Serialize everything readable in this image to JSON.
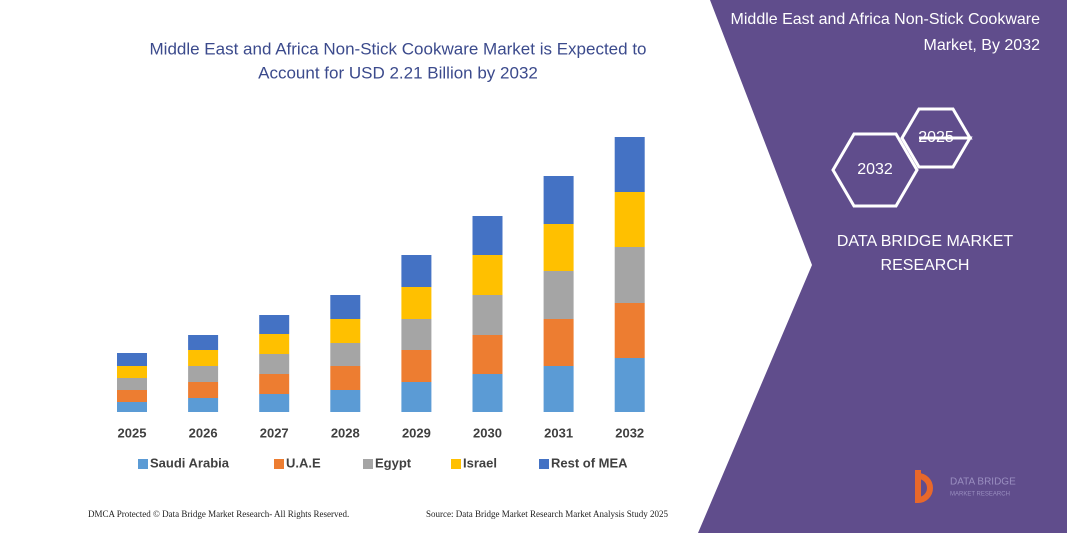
{
  "chart_data": {
    "type": "bar",
    "stacked": true,
    "title": "Middle East and Africa Non-Stick Cookware Market is Expected to Account for USD 2.21 Billion by 2032",
    "categories": [
      "2025",
      "2026",
      "2027",
      "2028",
      "2029",
      "2030",
      "2031",
      "2032"
    ],
    "series": [
      {
        "name": "Saudi Arabia",
        "color": "#5b9bd5",
        "values": [
          10,
          14,
          18,
          22,
          30,
          38,
          46,
          54
        ]
      },
      {
        "name": "U.A.E",
        "color": "#ed7d31",
        "values": [
          12,
          16,
          20,
          24,
          32,
          39,
          47,
          55
        ]
      },
      {
        "name": "Egypt",
        "color": "#a5a5a5",
        "values": [
          12,
          16,
          20,
          23,
          31,
          40,
          48,
          56
        ]
      },
      {
        "name": "Israel",
        "color": "#ffc000",
        "values": [
          12,
          16,
          20,
          24,
          32,
          40,
          47,
          55
        ]
      },
      {
        "name": "Rest of MEA",
        "color": "#4472c4",
        "values": [
          13,
          15,
          19,
          24,
          32,
          39,
          48,
          55
        ]
      }
    ]
  },
  "panel": {
    "title": "Middle East and Africa Non-Stick Cookware Market, By 2032",
    "hex_back": "2025",
    "hex_front": "2032",
    "brand": "DATA BRIDGE MARKET RESEARCH",
    "logo_top": "DATA BRIDGE",
    "logo_bottom": "MARKET RESEARCH"
  },
  "footer": {
    "left": "DMCA Protected © Data Bridge Market Research- All Rights Reserved.",
    "right": "Source: Data Bridge Market Research Market Analysis Study 2025"
  }
}
